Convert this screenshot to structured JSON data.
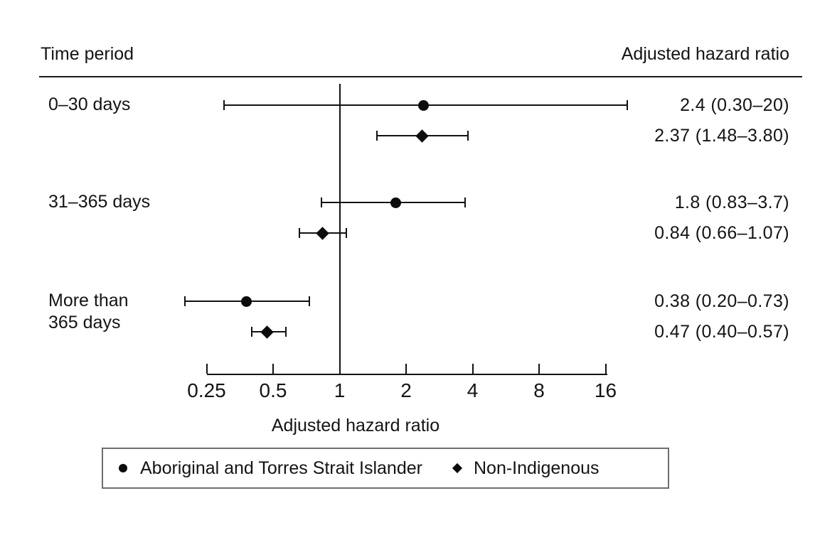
{
  "header": {
    "left": "Time period",
    "right": "Adjusted hazard ratio"
  },
  "chart_data": {
    "type": "forest",
    "x_scale": "log2",
    "xlabel": "Adjusted hazard ratio",
    "x_range": [
      0.25,
      16
    ],
    "x_ticks": [
      {
        "value": 0.25,
        "label": "0.25"
      },
      {
        "value": 0.5,
        "label": "0.5"
      },
      {
        "value": 1,
        "label": "1"
      },
      {
        "value": 2,
        "label": "2"
      },
      {
        "value": 4,
        "label": "4"
      },
      {
        "value": 8,
        "label": "8"
      },
      {
        "value": 16,
        "label": "16"
      }
    ],
    "reference_line": 1,
    "grid": false,
    "groups": [
      {
        "label": "0–30 days",
        "label_lines": [
          "0–30 days"
        ],
        "series": [
          {
            "name": "Aboriginal and Torres Strait Islander",
            "marker": "circle",
            "estimate": 2.4,
            "ci_low": 0.3,
            "ci_high": 20,
            "value_text": "2.4 (0.30–20)"
          },
          {
            "name": "Non-Indigenous",
            "marker": "diamond",
            "estimate": 2.37,
            "ci_low": 1.48,
            "ci_high": 3.8,
            "value_text": "2.37 (1.48–3.80)"
          }
        ]
      },
      {
        "label": "31–365 days",
        "label_lines": [
          "31–365 days"
        ],
        "series": [
          {
            "name": "Aboriginal and Torres Strait Islander",
            "marker": "circle",
            "estimate": 1.8,
            "ci_low": 0.83,
            "ci_high": 3.7,
            "value_text": "1.8 (0.83–3.7)"
          },
          {
            "name": "Non-Indigenous",
            "marker": "diamond",
            "estimate": 0.84,
            "ci_low": 0.66,
            "ci_high": 1.07,
            "value_text": "0.84 (0.66–1.07)"
          }
        ]
      },
      {
        "label": "More than 365 days",
        "label_lines": [
          "More than",
          "365 days"
        ],
        "series": [
          {
            "name": "Aboriginal and Torres Strait Islander",
            "marker": "circle",
            "estimate": 0.38,
            "ci_low": 0.2,
            "ci_high": 0.73,
            "value_text": "0.38 (0.20–0.73)"
          },
          {
            "name": "Non-Indigenous",
            "marker": "diamond",
            "estimate": 0.47,
            "ci_low": 0.4,
            "ci_high": 0.57,
            "value_text": "0.47 (0.40–0.57)"
          }
        ]
      }
    ],
    "legend": [
      {
        "marker": "circle",
        "label": "Aboriginal and Torres Strait Islander"
      },
      {
        "marker": "diamond",
        "label": "Non-Indigenous"
      }
    ],
    "colors": {
      "foreground": "#000000",
      "background": "#ffffff"
    }
  }
}
